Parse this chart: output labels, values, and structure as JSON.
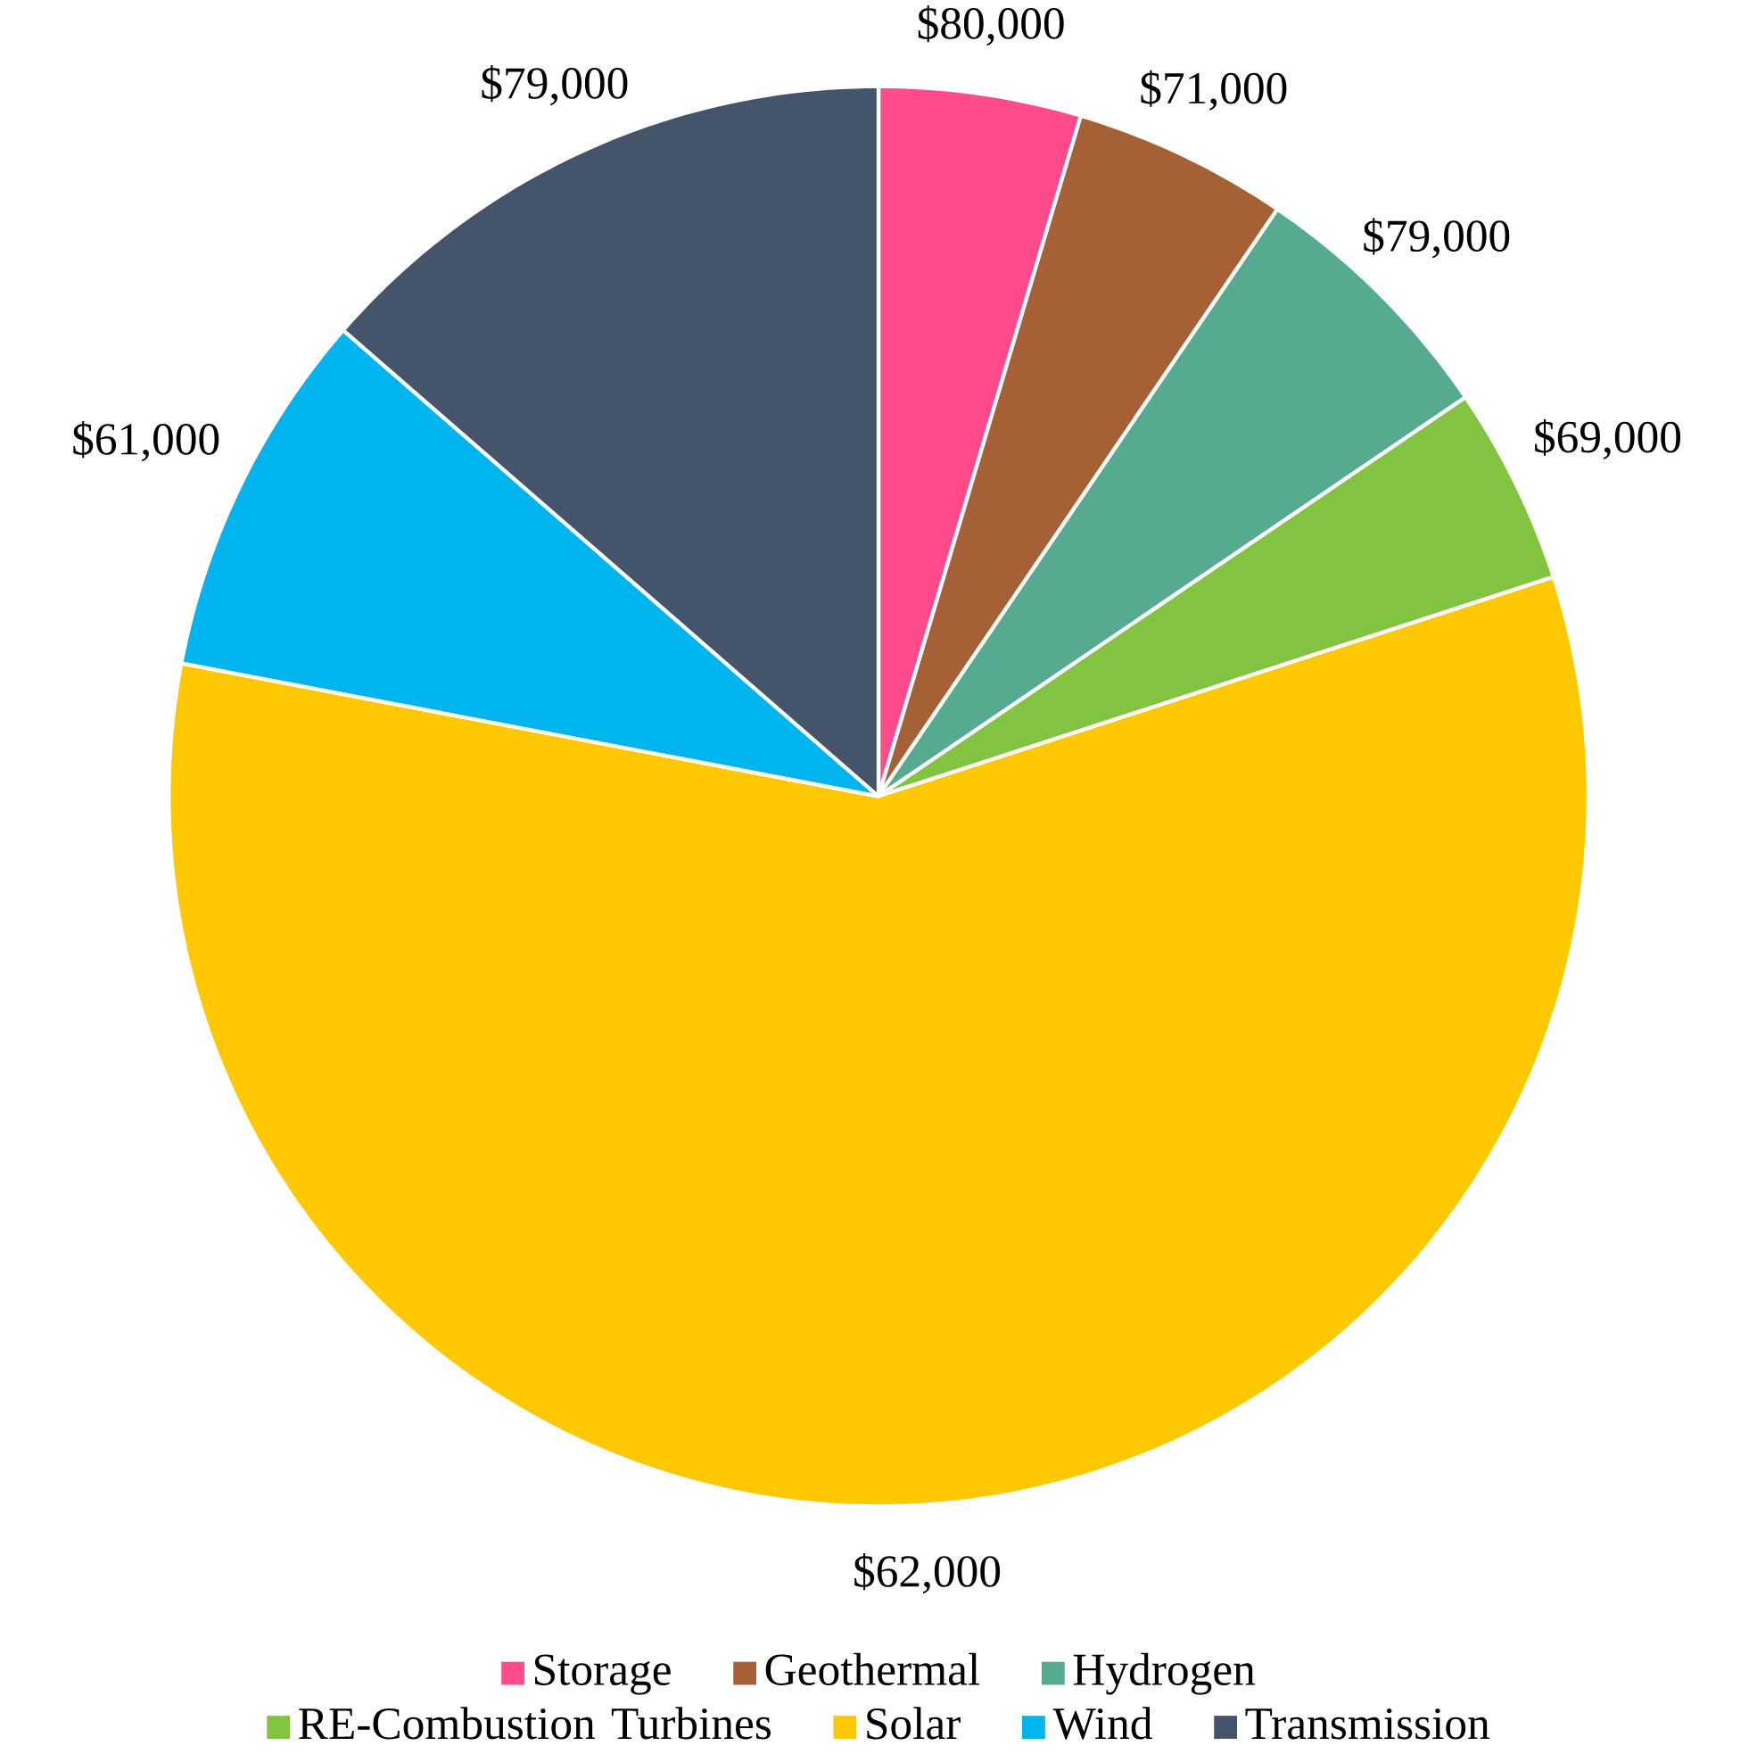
{
  "chart_data": {
    "type": "pie",
    "categories": [
      "Storage",
      "Geothermal",
      "Hydrogen",
      "RE-Combustion Turbines",
      "Solar",
      "Wind",
      "Transmission"
    ],
    "values": [
      4.6,
      4.9,
      6.0,
      4.5,
      58.0,
      8.4,
      13.6
    ],
    "colors": [
      "#ff4b8b",
      "#a66035",
      "#55aa90",
      "#82c341",
      "#ffc800",
      "#00b4ee",
      "#44546a"
    ],
    "annotations": [
      "$80,000",
      "$71,000",
      "$79,000",
      "$69,000",
      "$62,000",
      "$61,000",
      "$79,000"
    ],
    "legend": "bottom"
  }
}
